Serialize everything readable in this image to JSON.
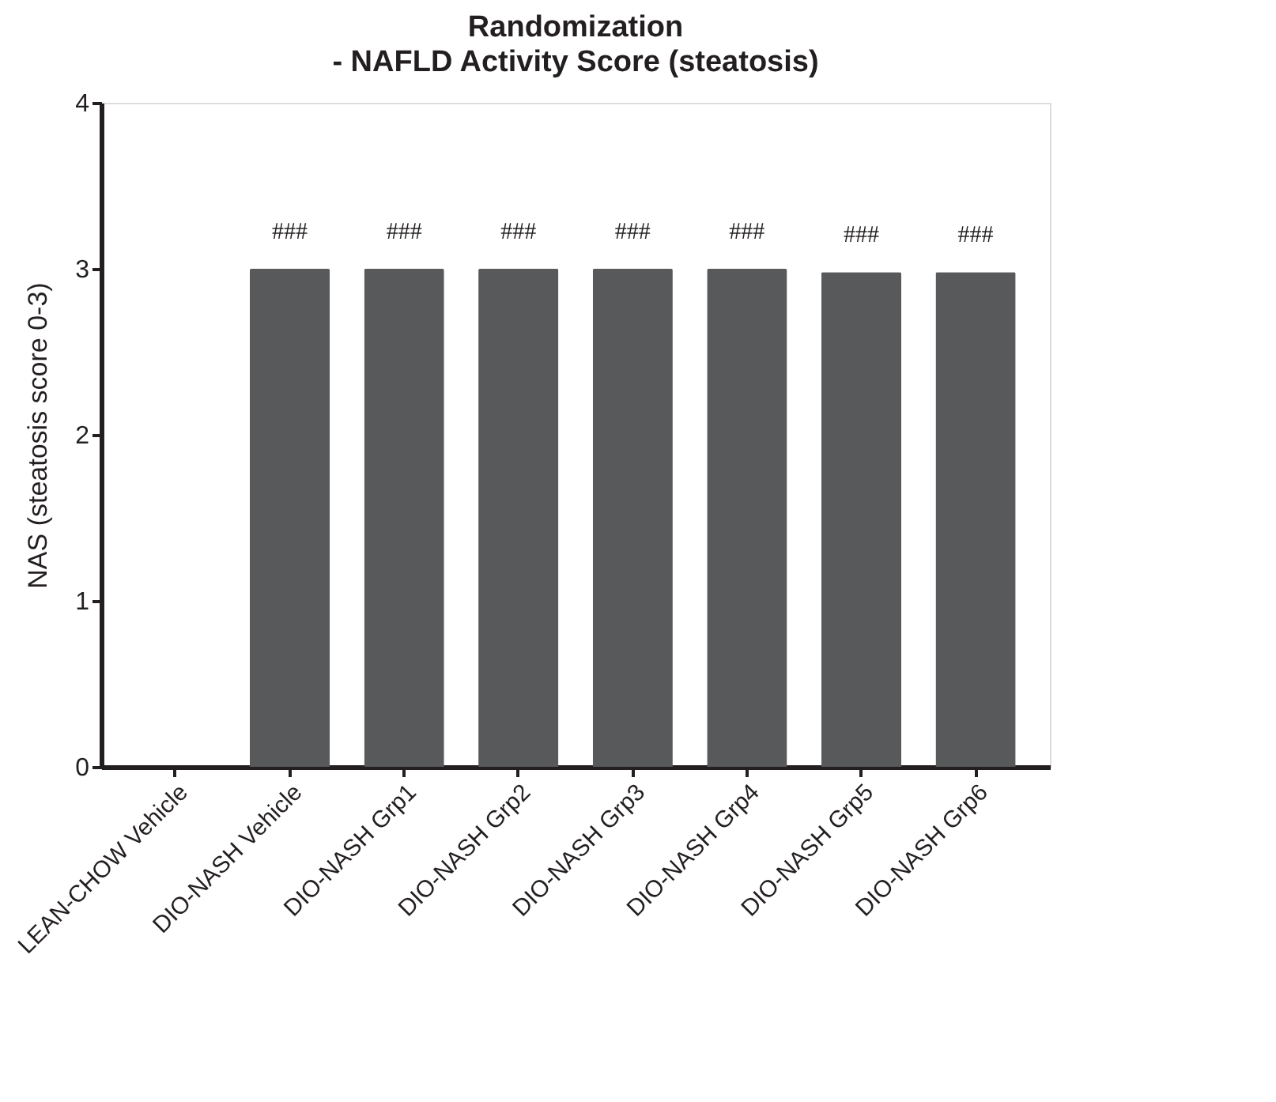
{
  "chart_data": {
    "type": "bar",
    "title": "Randomization",
    "subtitle": "- NAFLD Activity Score (steatosis)",
    "ylabel": "NAS (steatosis score 0-3)",
    "categories": [
      "LEAN-CHOW Vehicle",
      "DIO-NASH Vehicle",
      "DIO-NASH Grp1",
      "DIO-NASH Grp2",
      "DIO-NASH Grp3",
      "DIO-NASH Grp4",
      "DIO-NASH Grp5",
      "DIO-NASH Grp6"
    ],
    "values": [
      0,
      3,
      3,
      3,
      3,
      3,
      2.98,
      2.98
    ],
    "color": "#58595b",
    "ylim": [
      0,
      4
    ],
    "yticks": [
      0,
      1,
      2,
      3,
      4
    ],
    "grid": false,
    "annotations": [
      {
        "text": "###",
        "x": "DIO-NASH Vehicle",
        "y": 3
      },
      {
        "text": "###",
        "x": "DIO-NASH Grp1",
        "y": 3
      },
      {
        "text": "###",
        "x": "DIO-NASH Grp2",
        "y": 3
      },
      {
        "text": "###",
        "x": "DIO-NASH Grp3",
        "y": 3
      },
      {
        "text": "###",
        "x": "DIO-NASH Grp4",
        "y": 3
      },
      {
        "text": "###",
        "x": "DIO-NASH Grp5",
        "y": 2.98
      },
      {
        "text": "###",
        "x": "DIO-NASH Grp6",
        "y": 2.98
      }
    ]
  }
}
